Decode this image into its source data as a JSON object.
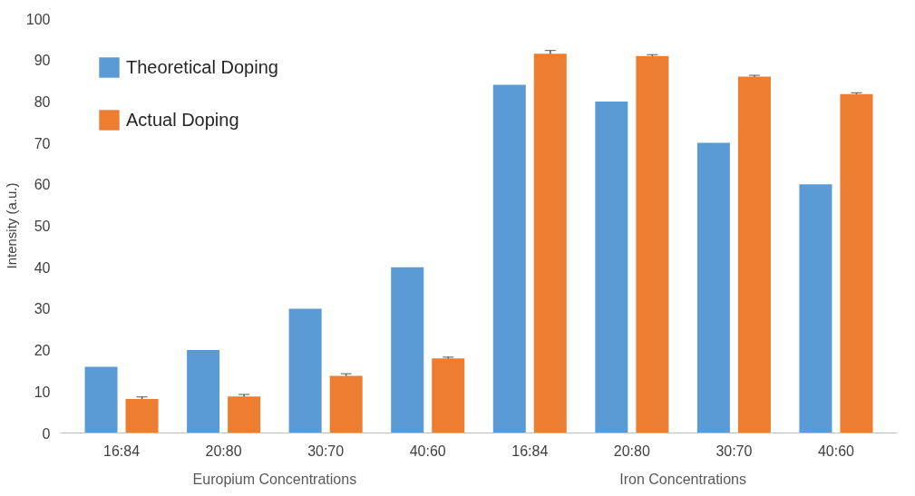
{
  "chart_data": {
    "type": "bar",
    "categories": [
      "16:84",
      "20:80",
      "30:70",
      "40:60",
      "16:84",
      "20:80",
      "30:70",
      "40:60"
    ],
    "ylabel": "Intensity (a.u.)",
    "ylim": [
      0,
      100
    ],
    "yticks": [
      0,
      10,
      20,
      30,
      40,
      50,
      60,
      70,
      80,
      90,
      100
    ],
    "series": [
      {
        "name": "Theoretical Doping",
        "color": "#5b9bd5",
        "values": [
          16,
          20,
          30,
          40,
          84,
          80,
          70,
          60
        ]
      },
      {
        "name": "Actual Doping",
        "color": "#ed7d31",
        "values": [
          8.2,
          8.8,
          13.8,
          18.0,
          91.5,
          91.0,
          86.0,
          81.8
        ],
        "errors": [
          0.5,
          0.5,
          0.5,
          0.3,
          0.8,
          0.3,
          0.3,
          0.3
        ]
      }
    ],
    "annotations": [
      "Europium Concentrations",
      "Iron Concentrations"
    ],
    "legend": "top left",
    "grid": false
  }
}
